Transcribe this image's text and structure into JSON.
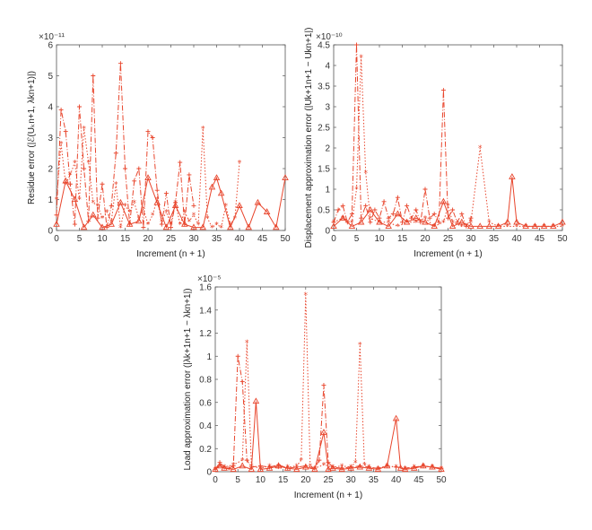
{
  "chart_data": [
    {
      "type": "line",
      "xlabel": "Increment (n + 1)",
      "ylabel": "Residue error (|ℰ(Uₖn+1, λkn+1)|)",
      "ylabel_main": "Residue error (|ℰ(",
      "ylabel_sub": "U",
      "y_multiplier": "×10⁻¹¹",
      "xlim": [
        0,
        50
      ],
      "ylim": [
        0,
        6
      ],
      "xticks": [
        "0",
        "5",
        "10",
        "15",
        "20",
        "25",
        "30",
        "35",
        "40",
        "45",
        "50"
      ],
      "yticks": [
        "0",
        "1",
        "2",
        "3",
        "4",
        "5",
        "6"
      ],
      "series": [
        {
          "style": "solid-triangle",
          "x": [
            0,
            2,
            4,
            6,
            8,
            10,
            12,
            14,
            16,
            18,
            20,
            22,
            24,
            26,
            28,
            30,
            32,
            34,
            35,
            36,
            38,
            40,
            42,
            44,
            46,
            48,
            50
          ],
          "values": [
            0.2,
            1.6,
            1.0,
            0.1,
            0.5,
            0.1,
            0.2,
            0.9,
            0.2,
            0.3,
            1.7,
            0.9,
            0.1,
            0.8,
            0.2,
            0.1,
            0.1,
            1.4,
            1.7,
            1.2,
            0.1,
            0.8,
            0.1,
            0.9,
            0.6,
            0.1,
            1.7
          ]
        },
        {
          "style": "dashdot-plus",
          "x": [
            0,
            1,
            2,
            3,
            4,
            5,
            6,
            7,
            8,
            9,
            10,
            11,
            12,
            13,
            14,
            15,
            16,
            17,
            18,
            19,
            20,
            21,
            22,
            23,
            24,
            25,
            26,
            27,
            28,
            29,
            30
          ],
          "values": [
            0.5,
            3.9,
            3.2,
            1.5,
            0.2,
            4.0,
            2.0,
            0.3,
            5.0,
            0.4,
            1.5,
            0.1,
            0.8,
            2.5,
            5.4,
            2.0,
            0.2,
            1.6,
            2.0,
            0.1,
            3.2,
            3.0,
            1.3,
            0.2,
            1.2,
            0.1,
            0.9,
            2.2,
            0.2,
            1.8,
            0.8
          ]
        },
        {
          "style": "dashed-star",
          "x": [
            0,
            1,
            2,
            3,
            4,
            5,
            6,
            7,
            8,
            9,
            10,
            11,
            12,
            13,
            14,
            15,
            16,
            17,
            18,
            19,
            20,
            21,
            22,
            23,
            24,
            25,
            26,
            27,
            28,
            29,
            30,
            31,
            32,
            33,
            34,
            35,
            36,
            37,
            38,
            39,
            40
          ],
          "values": [
            1.0,
            2.8,
            1.5,
            1.8,
            2.2,
            1.0,
            3.3,
            2.2,
            0.9,
            0.8,
            0.4,
            0.6,
            0.3,
            1.5,
            0.1,
            0.8,
            0.6,
            0.9,
            0.4,
            0.7,
            0.2,
            0.5,
            1.0,
            0.3,
            0.6,
            0.2,
            0.9,
            0.2,
            0.6,
            0.3,
            0.5,
            0.2,
            3.3,
            0.4,
            0.1,
            0.2,
            0.1,
            0.8,
            0.2,
            0.4,
            2.2
          ]
        }
      ]
    },
    {
      "type": "line",
      "xlabel": "Increment (n + 1)",
      "ylabel": "Displacement approximation error (|Uk+1n+1 − Ukn+1|)",
      "y_multiplier": "×10⁻¹⁰",
      "xlim": [
        0,
        50
      ],
      "ylim": [
        0,
        4.5
      ],
      "xticks": [
        "0",
        "5",
        "10",
        "15",
        "20",
        "25",
        "30",
        "35",
        "40",
        "45",
        "50"
      ],
      "yticks": [
        "0",
        "0.5",
        "1",
        "1.5",
        "2",
        "2.5",
        "3",
        "3.5",
        "4",
        "4.5"
      ],
      "series": [
        {
          "style": "solid-triangle",
          "x": [
            0,
            2,
            4,
            6,
            8,
            10,
            12,
            14,
            16,
            18,
            20,
            22,
            24,
            26,
            28,
            30,
            32,
            34,
            36,
            38,
            39,
            40,
            42,
            44,
            46,
            48,
            50
          ],
          "values": [
            0.1,
            0.3,
            0.1,
            0.2,
            0.5,
            0.2,
            0.1,
            0.4,
            0.2,
            0.3,
            0.2,
            0.1,
            0.7,
            0.1,
            0.2,
            0.1,
            0.1,
            0.1,
            0.1,
            0.2,
            1.3,
            0.2,
            0.1,
            0.1,
            0.1,
            0.1,
            0.2
          ]
        },
        {
          "style": "dashdot-plus",
          "x": [
            0,
            1,
            2,
            3,
            4,
            5,
            6,
            7,
            8,
            9,
            10,
            11,
            12,
            13,
            14,
            15,
            16,
            17,
            18,
            19,
            20,
            21,
            22,
            23,
            24,
            25,
            26,
            27,
            28,
            29,
            30
          ],
          "values": [
            0.2,
            0.5,
            0.6,
            0.2,
            0.4,
            4.5,
            0.3,
            0.6,
            0.2,
            0.5,
            0.3,
            0.7,
            0.3,
            0.4,
            0.8,
            0.2,
            0.6,
            0.3,
            0.5,
            0.2,
            1.0,
            0.3,
            0.4,
            0.2,
            3.4,
            0.3,
            0.5,
            0.2,
            0.4,
            0.1,
            0.3
          ]
        },
        {
          "style": "dashed-star",
          "x": [
            0,
            2,
            4,
            5,
            6,
            7,
            8,
            10,
            12,
            14,
            16,
            18,
            20,
            22,
            24,
            25,
            26,
            28,
            30,
            32,
            34,
            36,
            38,
            40,
            42,
            44,
            46,
            48,
            50
          ],
          "values": [
            0.2,
            0.3,
            0.2,
            1.0,
            4.2,
            1.4,
            0.3,
            0.2,
            0.2,
            0.1,
            0.2,
            0.2,
            0.3,
            0.1,
            0.2,
            0.6,
            0.2,
            0.1,
            0.2,
            2.0,
            0.2,
            0.1,
            0.1,
            0.1,
            0.1,
            0.1,
            0.1,
            0.1,
            0.1
          ]
        }
      ]
    },
    {
      "type": "line",
      "xlabel": "Increment (n + 1)",
      "ylabel": "Load approximation error (|λk+1n+1 − λkn+1|)",
      "y_multiplier": "×10⁻⁵",
      "xlim": [
        0,
        50
      ],
      "ylim": [
        0,
        1.6
      ],
      "xticks": [
        "0",
        "5",
        "10",
        "15",
        "20",
        "25",
        "30",
        "35",
        "40",
        "45",
        "50"
      ],
      "yticks": [
        "0",
        "0.2",
        "0.4",
        "0.6",
        "0.8",
        "1",
        "1.2",
        "1.4",
        "1.6"
      ],
      "series": [
        {
          "style": "solid-triangle",
          "x": [
            0,
            1,
            2,
            4,
            6,
            8,
            9,
            10,
            12,
            14,
            16,
            18,
            20,
            22,
            24,
            25,
            26,
            28,
            30,
            32,
            34,
            36,
            38,
            40,
            41,
            42,
            44,
            46,
            48,
            50
          ],
          "values": [
            0.02,
            0.05,
            0.03,
            0.02,
            0.05,
            0.02,
            0.61,
            0.02,
            0.03,
            0.05,
            0.03,
            0.02,
            0.04,
            0.02,
            0.34,
            0.02,
            0.03,
            0.02,
            0.03,
            0.04,
            0.03,
            0.02,
            0.05,
            0.46,
            0.03,
            0.02,
            0.03,
            0.05,
            0.04,
            0.02
          ]
        },
        {
          "style": "dashdot-plus",
          "x": [
            0,
            1,
            2,
            3,
            4,
            5,
            6,
            7,
            8,
            10,
            12,
            14,
            16,
            18,
            20,
            22,
            23,
            24,
            25,
            26,
            28,
            30,
            32,
            34,
            36,
            38,
            40,
            42,
            44,
            46,
            48,
            50
          ],
          "values": [
            0.02,
            0.08,
            0.04,
            0.03,
            0.05,
            1.0,
            0.78,
            0.1,
            0.04,
            0.05,
            0.04,
            0.06,
            0.03,
            0.04,
            0.05,
            0.03,
            0.1,
            0.75,
            0.08,
            0.04,
            0.03,
            0.04,
            0.05,
            0.04,
            0.03,
            0.05,
            0.04,
            0.03,
            0.04,
            0.05,
            0.04,
            0.03
          ]
        },
        {
          "style": "dashed-star",
          "x": [
            0,
            1,
            2,
            4,
            6,
            7,
            8,
            10,
            12,
            14,
            16,
            18,
            19,
            20,
            21,
            22,
            24,
            26,
            28,
            30,
            31,
            32,
            33,
            34,
            36,
            38,
            40,
            42,
            44,
            46,
            48,
            50
          ],
          "values": [
            0.02,
            0.05,
            0.04,
            0.06,
            0.1,
            1.12,
            0.05,
            0.03,
            0.05,
            0.03,
            0.04,
            0.05,
            0.1,
            1.53,
            0.05,
            0.03,
            0.06,
            0.04,
            0.05,
            0.04,
            0.08,
            1.1,
            0.06,
            0.04,
            0.03,
            0.05,
            0.04,
            0.03,
            0.04,
            0.05,
            0.04,
            0.03
          ]
        }
      ]
    }
  ],
  "colors": {
    "series": "#e8452c",
    "axis": "#555555"
  }
}
